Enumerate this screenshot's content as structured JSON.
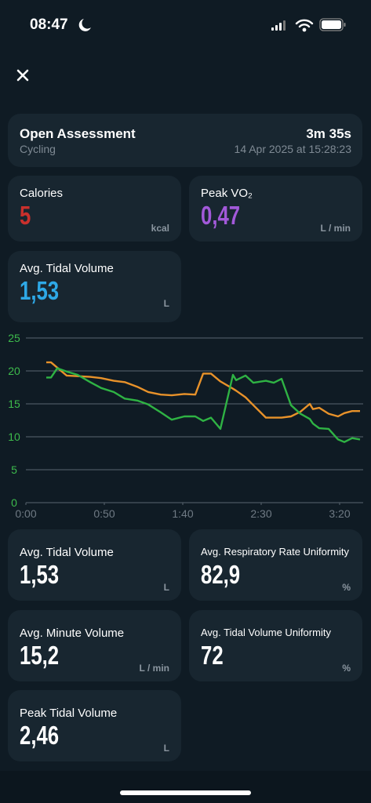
{
  "status_bar": {
    "time": "08:47"
  },
  "header": {
    "title": "Open Assessment",
    "subtitle": "Cycling",
    "duration": "3m 35s",
    "date": "14 Apr 2025 at 15:28:23"
  },
  "top_metrics": [
    {
      "label": "Calories",
      "value": "5",
      "unit": "kcal",
      "color": "#c9302c"
    },
    {
      "label": "Peak VO₂",
      "value": "0,47",
      "unit": "L / min",
      "color": "#a259d9"
    },
    {
      "label": "Avg. Tidal Volume",
      "value": "1,53",
      "unit": "L",
      "color": "#2ea8e6"
    }
  ],
  "chart_data": {
    "type": "line",
    "x": [
      13,
      16,
      20,
      26,
      33,
      41,
      48,
      56,
      63,
      71,
      78,
      86,
      93,
      101,
      108,
      113,
      118,
      124,
      132,
      134,
      140,
      145,
      153,
      158,
      163,
      169,
      175,
      181,
      183,
      187,
      193,
      199,
      203,
      208,
      213
    ],
    "series": [
      {
        "color": "#e8922a",
        "values": [
          21.3,
          21.3,
          20.5,
          19.3,
          19.2,
          19.1,
          18.9,
          18.5,
          18.3,
          17.6,
          16.8,
          16.4,
          16.3,
          16.5,
          16.4,
          19.6,
          19.6,
          18.4,
          17.3,
          17.0,
          16.0,
          14.8,
          12.9,
          12.9,
          12.9,
          13.1,
          13.8,
          15.0,
          14.2,
          14.4,
          13.5,
          13.1,
          13.6,
          13.9,
          13.9
        ]
      },
      {
        "color": "#2fb344",
        "values": [
          19.0,
          19.0,
          20.4,
          19.9,
          19.4,
          18.3,
          17.4,
          16.8,
          15.8,
          15.5,
          14.9,
          13.7,
          12.6,
          13.1,
          13.1,
          12.4,
          12.9,
          11.2,
          19.4,
          18.6,
          19.3,
          18.2,
          18.5,
          18.2,
          18.8,
          14.8,
          13.5,
          12.7,
          12.0,
          11.3,
          11.2,
          9.6,
          9.2,
          9.8,
          9.6
        ]
      }
    ],
    "xlim": [
      0,
      215
    ],
    "xticks": [
      {
        "value": 0,
        "label": "0:00"
      },
      {
        "value": 50,
        "label": "0:50"
      },
      {
        "value": 100,
        "label": "1:40"
      },
      {
        "value": 150,
        "label": "2:30"
      },
      {
        "value": 200,
        "label": "3:20"
      }
    ],
    "ylim": [
      0,
      25
    ],
    "yticks": [
      0,
      5,
      10,
      15,
      20,
      25
    ],
    "grid": true
  },
  "metrics": [
    {
      "label": "Avg. Tidal Volume",
      "value": "1,53",
      "unit": "L"
    },
    {
      "label": "Avg. Respiratory Rate Uniformity",
      "value": "82,9",
      "unit": "%"
    },
    {
      "label": "Avg. Minute Volume",
      "value": "15,2",
      "unit": "L / min"
    },
    {
      "label": "Avg. Tidal Volume Uniformity",
      "value": "72",
      "unit": "%"
    },
    {
      "label": "Peak Tidal Volume",
      "value": "2,46",
      "unit": "L"
    }
  ]
}
